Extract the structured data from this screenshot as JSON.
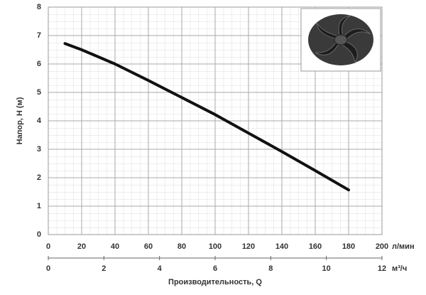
{
  "chart_data": {
    "type": "line",
    "ylabel": "Напор, H (м)",
    "xlabel": "Производительность, Q",
    "xunit": "л/мин",
    "x2unit": "м³/ч",
    "x": [
      10,
      20,
      40,
      60,
      80,
      100,
      120,
      140,
      160,
      180
    ],
    "values": [
      6.72,
      6.5,
      6.0,
      5.42,
      4.82,
      4.22,
      3.57,
      2.92,
      2.25,
      1.57
    ],
    "color": "#111111",
    "xlim": [
      0,
      200
    ],
    "xticks": [
      0,
      20,
      40,
      60,
      80,
      100,
      120,
      140,
      160,
      180,
      200
    ],
    "x2lim": [
      0,
      12
    ],
    "x2ticks": [
      0,
      2,
      4,
      6,
      8,
      10,
      12
    ],
    "ylim": [
      0,
      8
    ],
    "yticks": [
      0,
      1,
      2,
      3,
      4,
      5,
      6,
      7,
      8
    ],
    "grid": true
  }
}
